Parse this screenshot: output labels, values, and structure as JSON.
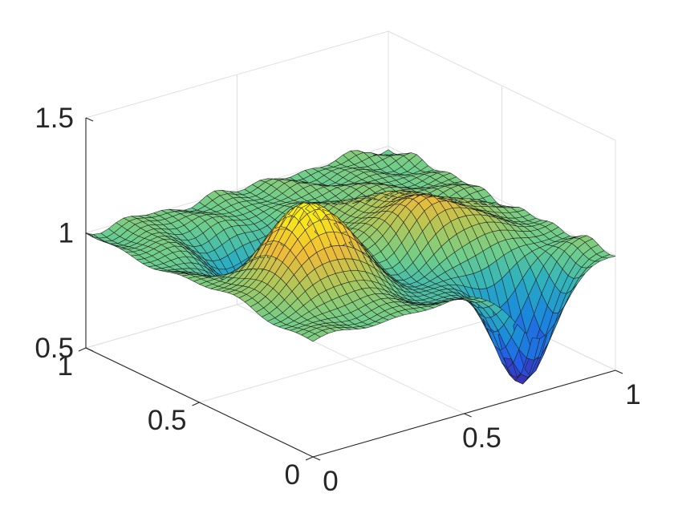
{
  "chart_data": {
    "type": "surface",
    "title": "",
    "xlabel": "",
    "ylabel": "",
    "zlabel": "",
    "xlim": [
      0,
      1
    ],
    "ylim": [
      0,
      1
    ],
    "zlim": [
      0.5,
      1.5
    ],
    "x_ticks": [
      "0",
      "0.5",
      "1"
    ],
    "y_ticks": [
      "0",
      "0.5",
      "1"
    ],
    "z_ticks": [
      "0.5",
      "1",
      "1.5"
    ],
    "grid": true,
    "colormap": "parula",
    "grid_resolution": 41,
    "surface_features": [
      {
        "kind": "peak",
        "x": 0.25,
        "y": 0.35,
        "z": 1.35
      },
      {
        "kind": "peak",
        "x": 0.7,
        "y": 0.4,
        "z": 1.18
      },
      {
        "kind": "peak",
        "x": 0.6,
        "y": 0.6,
        "z": 1.07
      },
      {
        "kind": "trough",
        "x": 0.32,
        "y": 0.62,
        "z": 0.72
      },
      {
        "kind": "trough",
        "x": 0.75,
        "y": 0.08,
        "z": 0.5
      },
      {
        "kind": "trough",
        "x": 0.55,
        "y": 0.25,
        "z": 0.88
      }
    ],
    "baseline_z": 1.0
  }
}
